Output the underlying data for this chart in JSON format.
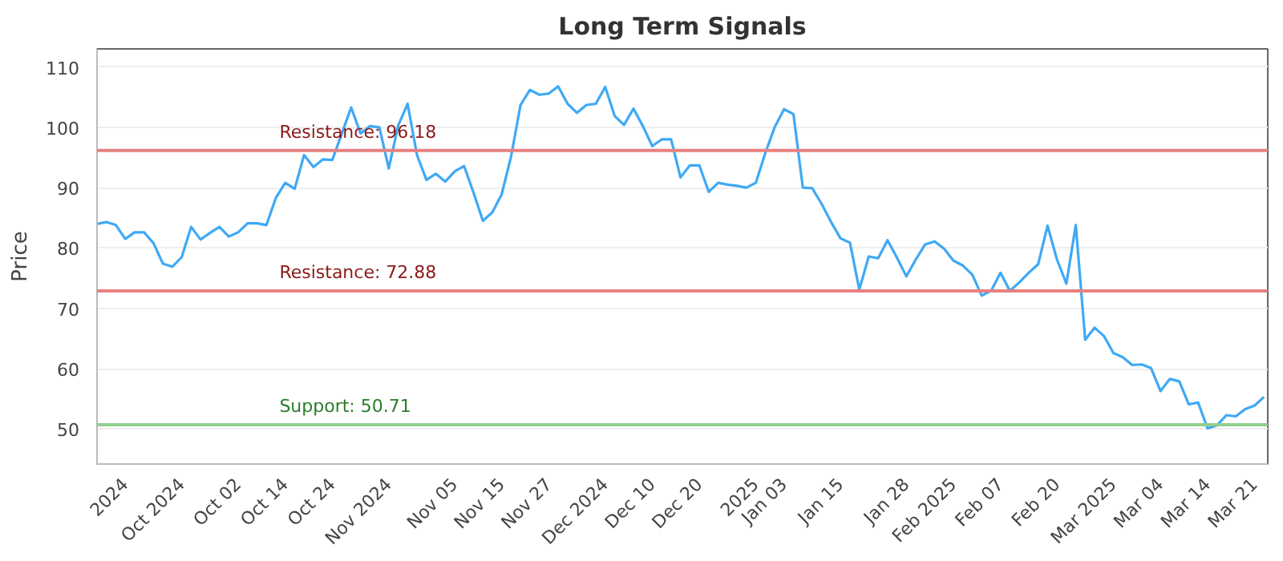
{
  "chart_data": {
    "type": "line",
    "title": "Long Term Signals",
    "ylabel": "Price",
    "categories": [
      null,
      null,
      null,
      "2024",
      null,
      null,
      null,
      null,
      null,
      "Oct 2024",
      null,
      null,
      null,
      null,
      null,
      "Oct 02",
      null,
      null,
      null,
      null,
      "Oct 14",
      null,
      null,
      null,
      null,
      "Oct 24",
      null,
      null,
      null,
      null,
      null,
      "Nov 2024",
      null,
      null,
      null,
      null,
      null,
      null,
      "Nov 05",
      null,
      null,
      null,
      null,
      "Nov 15",
      null,
      null,
      null,
      null,
      "Nov 27",
      null,
      null,
      null,
      null,
      null,
      "Dec 2024",
      null,
      null,
      null,
      null,
      "Dec 10",
      null,
      null,
      null,
      null,
      "Dec 20",
      null,
      null,
      null,
      null,
      null,
      "2025",
      null,
      null,
      "Jan 03",
      null,
      null,
      null,
      null,
      null,
      "Jan 15",
      null,
      null,
      null,
      null,
      null,
      null,
      "Jan 28",
      null,
      null,
      null,
      null,
      "Feb 2025",
      null,
      null,
      null,
      null,
      "Feb 07",
      null,
      null,
      null,
      null,
      null,
      "Feb 20",
      null,
      null,
      null,
      null,
      null,
      "Mar 2025",
      null,
      null,
      null,
      null,
      "Mar 04",
      null,
      null,
      null,
      null,
      "Mar 14",
      null,
      null,
      null,
      null,
      "Mar 21",
      null
    ],
    "series": [
      {
        "color": "#3fa9f5",
        "values": [
          84.0,
          84.3,
          83.8,
          81.5,
          82.6,
          82.6,
          80.8,
          77.4,
          76.9,
          78.5,
          83.5,
          81.4,
          82.5,
          83.5,
          81.9,
          82.6,
          84.1,
          84.1,
          83.8,
          88.3,
          90.8,
          89.8,
          95.4,
          93.4,
          94.7,
          94.6,
          98.9,
          103.3,
          99.0,
          100.2,
          100.0,
          93.2,
          100.3,
          103.9,
          95.4,
          91.3,
          92.3,
          91.0,
          92.7,
          93.6,
          89.2,
          84.5,
          85.9,
          88.9,
          95.2,
          103.7,
          106.2,
          105.4,
          105.6,
          106.8,
          103.9,
          102.4,
          103.7,
          103.9,
          106.7,
          101.9,
          100.4,
          103.1,
          100.2,
          96.9,
          98.0,
          98.0,
          91.7,
          93.7,
          93.7,
          89.3,
          90.8,
          90.5,
          90.3,
          90.0,
          90.8,
          95.7,
          100.0,
          103.0,
          102.2,
          90.0,
          89.9,
          87.3,
          84.3,
          81.6,
          80.9,
          73.1,
          78.6,
          78.3,
          81.3,
          78.4,
          75.3,
          78.1,
          80.6,
          81.1,
          79.9,
          77.9,
          77.1,
          75.6,
          72.1,
          72.9,
          75.9,
          72.9,
          74.3,
          75.9,
          77.3,
          83.7,
          78.1,
          74.1,
          83.8,
          64.8,
          66.8,
          65.4,
          62.6,
          61.9,
          60.6,
          60.7,
          60.1,
          56.3,
          58.3,
          57.9,
          54.1,
          54.4,
          50.1,
          50.6,
          52.3,
          52.1,
          53.3,
          53.9,
          55.3
        ]
      }
    ],
    "ylim": [
      44.2,
      113
    ],
    "yticks": [
      50,
      60,
      70,
      80,
      90,
      100,
      110
    ],
    "grid": "y",
    "ref_lines": [
      {
        "axis": "y",
        "value": 96.18,
        "label": "Resistance: 96.18",
        "color": "#e88080"
      },
      {
        "axis": "y",
        "value": 72.88,
        "label": "Resistance: 72.88",
        "color": "#e88080"
      },
      {
        "axis": "y",
        "value": 50.71,
        "label": "Support: 50.71",
        "color": "#8fd08f"
      }
    ]
  }
}
